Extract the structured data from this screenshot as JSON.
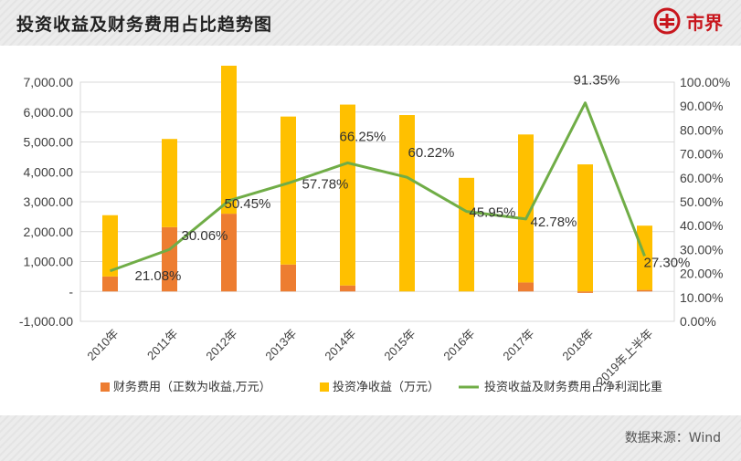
{
  "header": {
    "title": "投资收益及财务费用占比趋势图"
  },
  "logo": {
    "text": "市界",
    "color": "#c8161d",
    "icon": "shijie-logo-icon"
  },
  "footer": {
    "source": "数据来源：Wind"
  },
  "colors": {
    "finance": "#ed7d31",
    "investment": "#ffc000",
    "ratio": "#70ad47"
  },
  "chart_data": {
    "type": "bar",
    "categories": [
      "2010年",
      "2011年",
      "2012年",
      "2013年",
      "2014年",
      "2015年",
      "2016年",
      "2017年",
      "2018年",
      "2019年上半年"
    ],
    "series": [
      {
        "name": "财务费用（正数为收益,万元）",
        "type": "bar",
        "axis": "left",
        "values": [
          500,
          2150,
          2600,
          900,
          200,
          0,
          0,
          300,
          -50,
          50
        ]
      },
      {
        "name": "投资净收益（万元）",
        "type": "bar",
        "axis": "left",
        "values": [
          2050,
          2950,
          4950,
          4950,
          6050,
          5900,
          3800,
          4950,
          4250,
          2150
        ]
      },
      {
        "name": "投资收益及财务费用占净利润比重",
        "type": "line",
        "axis": "right",
        "values": [
          21.08,
          30.06,
          50.45,
          57.78,
          66.25,
          60.22,
          45.95,
          42.78,
          91.35,
          27.3
        ]
      }
    ],
    "data_labels": [
      "21.08%",
      "30.06%",
      "50.45%",
      "57.78%",
      "66.25%",
      "60.22%",
      "45.95%",
      "42.78%",
      "91.35%",
      "27.30%"
    ],
    "left_axis": {
      "ylim": [
        -1000,
        7000
      ],
      "ticks": [
        -1000,
        0,
        1000,
        2000,
        3000,
        4000,
        5000,
        6000,
        7000
      ],
      "tick_labels": [
        "-1,000.00",
        "-",
        "1,000.00",
        "2,000.00",
        "3,000.00",
        "4,000.00",
        "5,000.00",
        "6,000.00",
        "7,000.00"
      ]
    },
    "right_axis": {
      "ylim": [
        0,
        100
      ],
      "ticks": [
        0,
        10,
        20,
        30,
        40,
        50,
        60,
        70,
        80,
        90,
        100
      ],
      "tick_labels": [
        "0.00%",
        "10.00%",
        "20.00%",
        "30.00%",
        "40.00%",
        "50.00%",
        "60.00%",
        "70.00%",
        "80.00%",
        "90.00%",
        "100.00%"
      ]
    },
    "grid": true,
    "legend": "bottom"
  }
}
